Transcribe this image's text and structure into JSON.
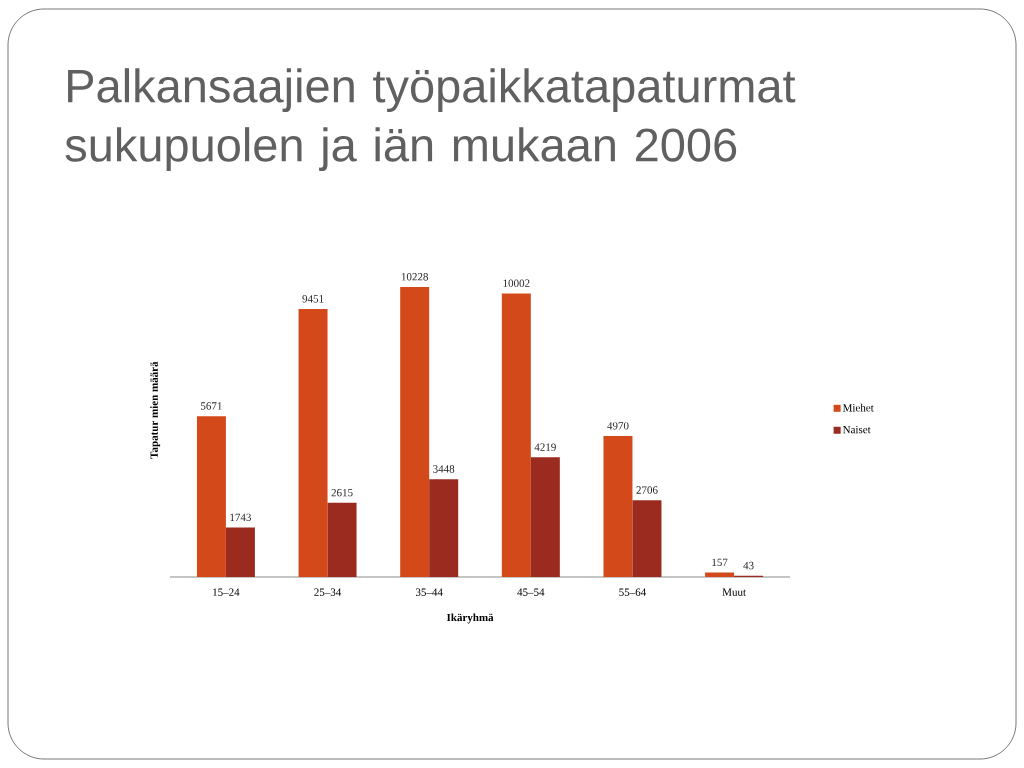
{
  "chart_data": {
    "type": "bar",
    "title": "Palkansaajien työpaikkatapaturmat sukupuolen ja iän mukaan 2006",
    "xlabel": "Ikäryhmä",
    "ylabel": "Tapatur mien määrä",
    "categories": [
      "15–24",
      "25–34",
      "35–44",
      "45–54",
      "55–64",
      "Muut"
    ],
    "series": [
      {
        "name": "Miehet",
        "color": "#d4491a",
        "values": [
          5671,
          9451,
          10228,
          10002,
          4970,
          157
        ]
      },
      {
        "name": "Naiset",
        "color": "#9b2a1f",
        "values": [
          1743,
          2615,
          3448,
          4219,
          2706,
          43
        ]
      }
    ],
    "data_labels": true,
    "legend": "right",
    "tick_labels": "x"
  }
}
